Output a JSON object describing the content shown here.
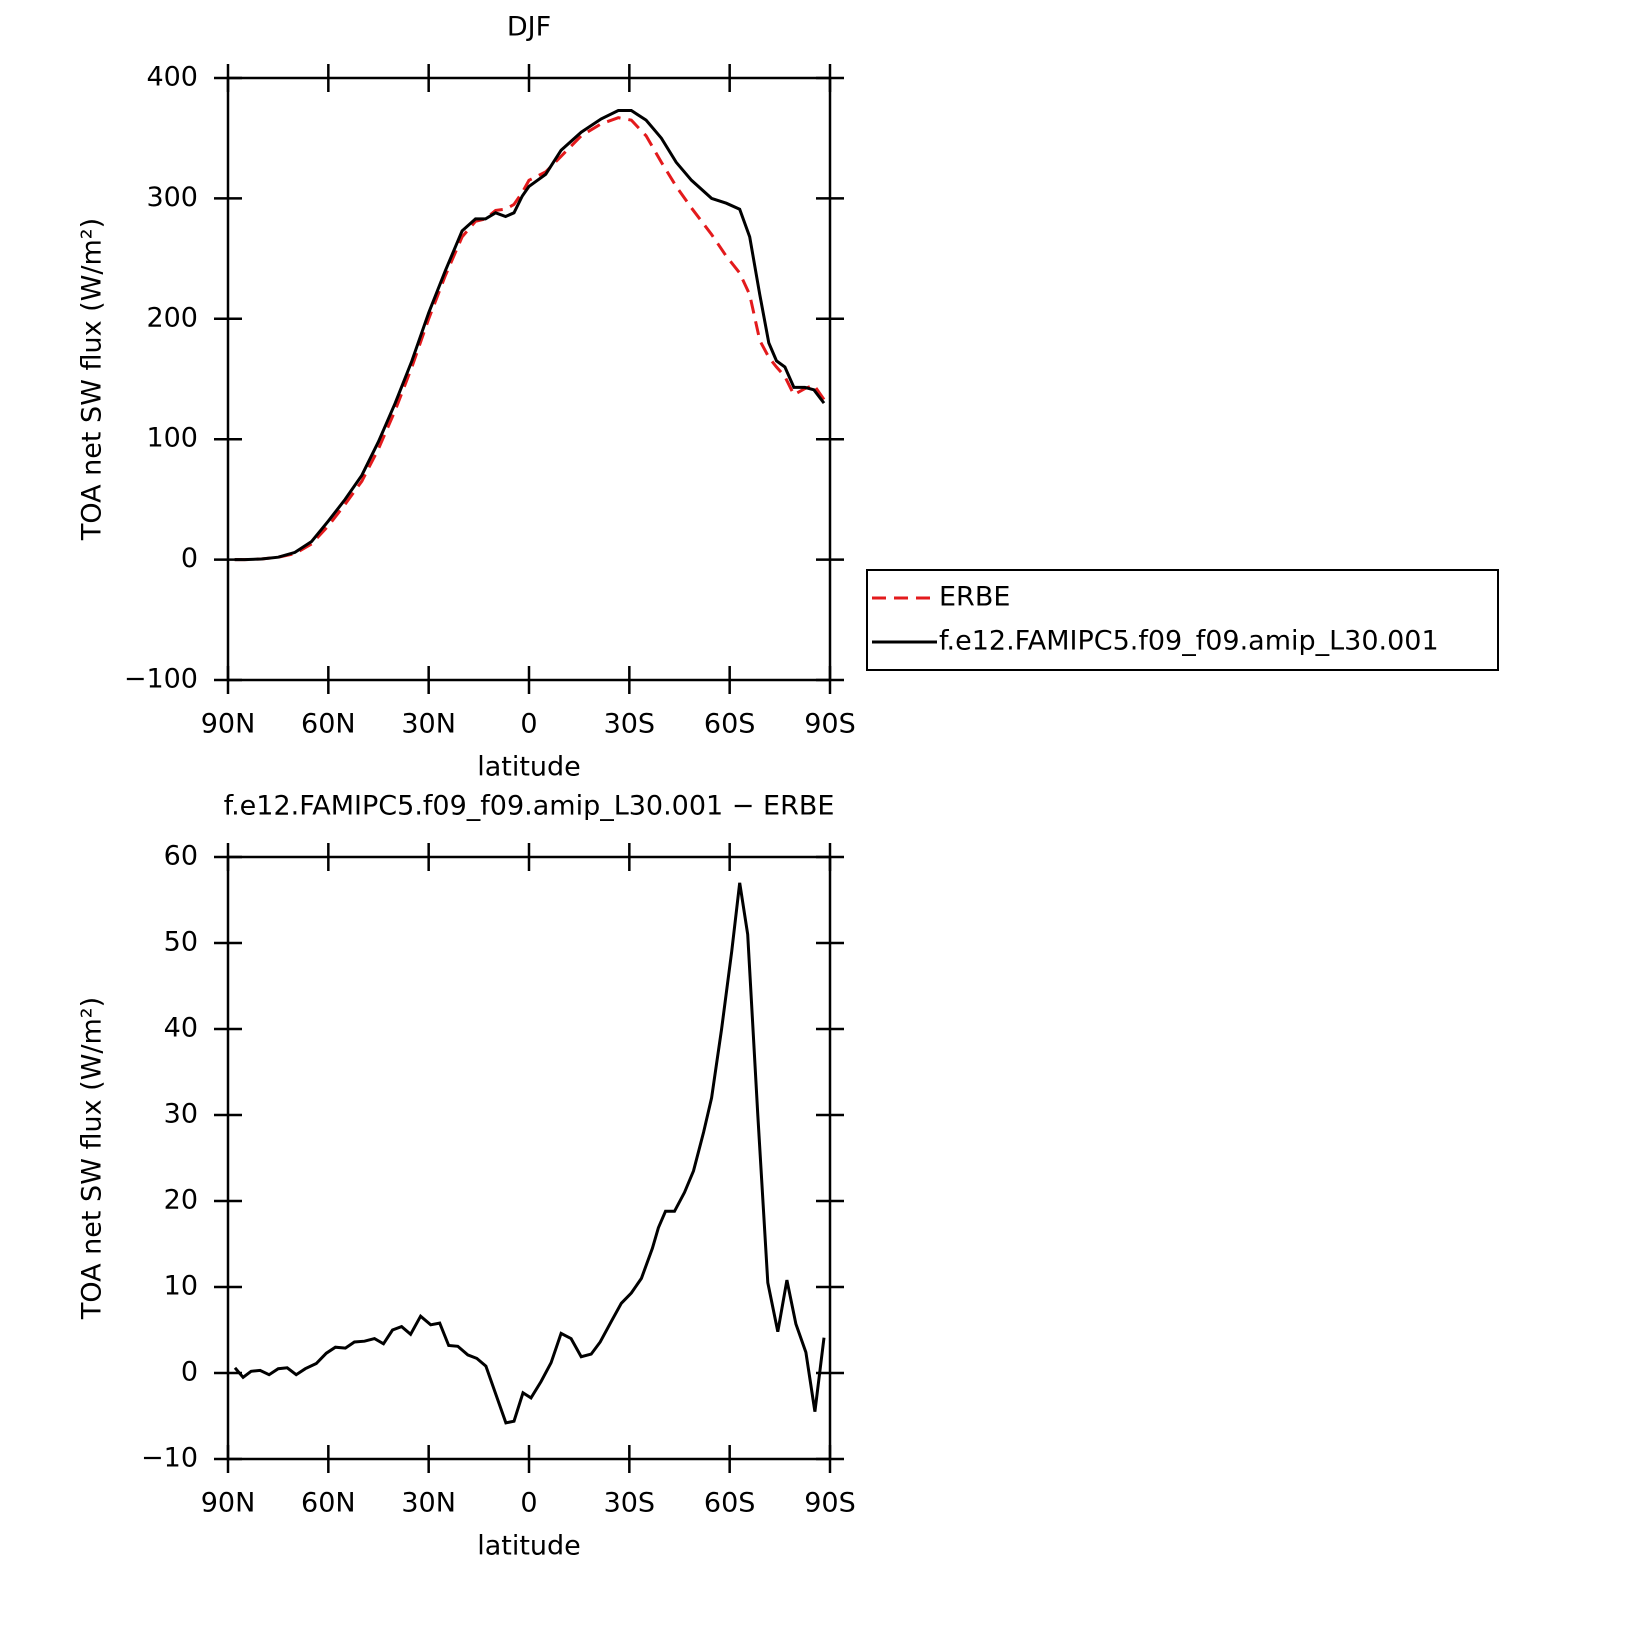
{
  "chart_data": [
    {
      "type": "line",
      "title": "DJF",
      "xlabel": "latitude",
      "ylabel": "TOA net SW flux (W/m²)",
      "x": [
        88,
        85,
        80,
        75,
        70,
        65,
        60,
        55,
        50,
        45,
        40,
        35,
        30,
        25,
        20,
        16,
        13,
        10,
        7,
        4.5,
        2,
        0,
        -5,
        -9.6,
        -15.6,
        -21.6,
        -26.7,
        -30.6,
        -35,
        -39.6,
        -44,
        -48.6,
        -54.6,
        -59,
        -63,
        -66,
        -69,
        -71.7,
        -74,
        -76.5,
        -79.2,
        -82.5,
        -85.2,
        -88.2
      ],
      "series": [
        {
          "name": "ERBE",
          "color": "#e31a1c",
          "dash": true,
          "values": [
            0,
            0,
            0.5,
            2,
            5,
            13,
            28,
            46,
            65,
            92,
            124,
            160,
            200,
            236,
            268,
            281,
            283,
            290,
            291,
            295,
            305,
            315,
            322,
            335,
            352,
            362,
            367,
            365,
            352,
            330,
            310,
            292,
            270,
            252,
            238,
            220,
            182,
            168,
            160,
            152,
            137,
            142,
            145,
            133
          ]
        },
        {
          "name": "f.e12.FAMIPC5.f09_f09.amip_L30.001",
          "color": "#000000",
          "dash": false,
          "values": [
            0,
            0,
            0.5,
            2,
            6,
            15,
            32,
            50,
            70,
            98,
            130,
            165,
            205,
            240,
            273,
            283,
            283,
            288,
            285,
            288,
            302,
            310,
            320,
            340,
            355,
            366,
            373,
            373,
            365,
            350,
            330,
            315,
            300,
            296,
            291,
            268,
            220,
            180,
            165,
            160,
            143,
            143,
            141,
            130
          ]
        }
      ],
      "xlim": [
        90,
        -90
      ],
      "ylim": [
        -100,
        400
      ],
      "xticks": [
        {
          "value": 90,
          "label": "90N"
        },
        {
          "value": 60,
          "label": "60N"
        },
        {
          "value": 30,
          "label": "30N"
        },
        0,
        {
          "value": -30,
          "label": "30S"
        },
        {
          "value": -60,
          "label": "60S"
        },
        {
          "value": -90,
          "label": "90S"
        }
      ],
      "yticks": [
        {
          "value": -100,
          "label": "−100"
        },
        0,
        100,
        200,
        300,
        400
      ],
      "legend": "right"
    },
    {
      "type": "line",
      "title": "f.e12.FAMIPC5.f09_f09.amip_L30.001 − ERBE",
      "xlabel": "latitude",
      "ylabel": "TOA net SW flux (W/m²)",
      "x": [
        87.9,
        85.5,
        83.1,
        80.4,
        77.7,
        75,
        72.3,
        69.6,
        66.9,
        63.6,
        60.6,
        57.9,
        54.9,
        52.2,
        49.2,
        46.2,
        43.5,
        40.8,
        38.1,
        35.4,
        32.4,
        29.4,
        26.7,
        24,
        21.3,
        18.3,
        15.6,
        12.9,
        9.9,
        6.9,
        4.5,
        1.8,
        -0.6,
        -3.6,
        -6.6,
        -9.6,
        -12.6,
        -15.6,
        -18.6,
        -21.3,
        -24.6,
        -27.6,
        -30.6,
        -33.6,
        -36.9,
        -38.7,
        -40.8,
        -43.5,
        -46.5,
        -49.2,
        -52.2,
        -54.6,
        -57.6,
        -60.6,
        -63,
        -65.4,
        -68.4,
        -71.4,
        -74.4,
        -77.1,
        -79.8,
        -82.8,
        -85.5,
        -88.2
      ],
      "series": [
        {
          "name": "f.e12.FAMIPC5.f09_f09.amip_L30.001 − ERBE",
          "color": "#000000",
          "dash": false,
          "values": [
            0.6,
            -0.5,
            0.2,
            0.3,
            -0.2,
            0.5,
            0.6,
            -0.2,
            0.5,
            1.1,
            2.3,
            3,
            2.9,
            3.6,
            3.7,
            4,
            3.4,
            5,
            5.4,
            4.5,
            6.6,
            5.6,
            5.8,
            3.2,
            3.1,
            2.1,
            1.7,
            0.8,
            -2.5,
            -5.8,
            -5.6,
            -2.3,
            -2.9,
            -1,
            1.2,
            4.6,
            4,
            1.9,
            2.2,
            3.6,
            6,
            8.1,
            9.3,
            11,
            14.5,
            16.9,
            18.8,
            18.8,
            21,
            23.5,
            28,
            32,
            40,
            49,
            57,
            51,
            30,
            10.5,
            4.8,
            10.8,
            5.7,
            2.4,
            -4.5,
            4.1
          ]
        }
      ],
      "xlim": [
        90,
        -90
      ],
      "ylim": [
        -10,
        60
      ],
      "xticks": [
        {
          "value": 90,
          "label": "90N"
        },
        {
          "value": 60,
          "label": "60N"
        },
        {
          "value": 30,
          "label": "30N"
        },
        0,
        {
          "value": -30,
          "label": "30S"
        },
        {
          "value": -60,
          "label": "60S"
        },
        {
          "value": -90,
          "label": "90S"
        }
      ],
      "yticks": [
        {
          "value": -10,
          "label": "−10"
        },
        0,
        10,
        20,
        30,
        40,
        50,
        60
      ]
    }
  ]
}
